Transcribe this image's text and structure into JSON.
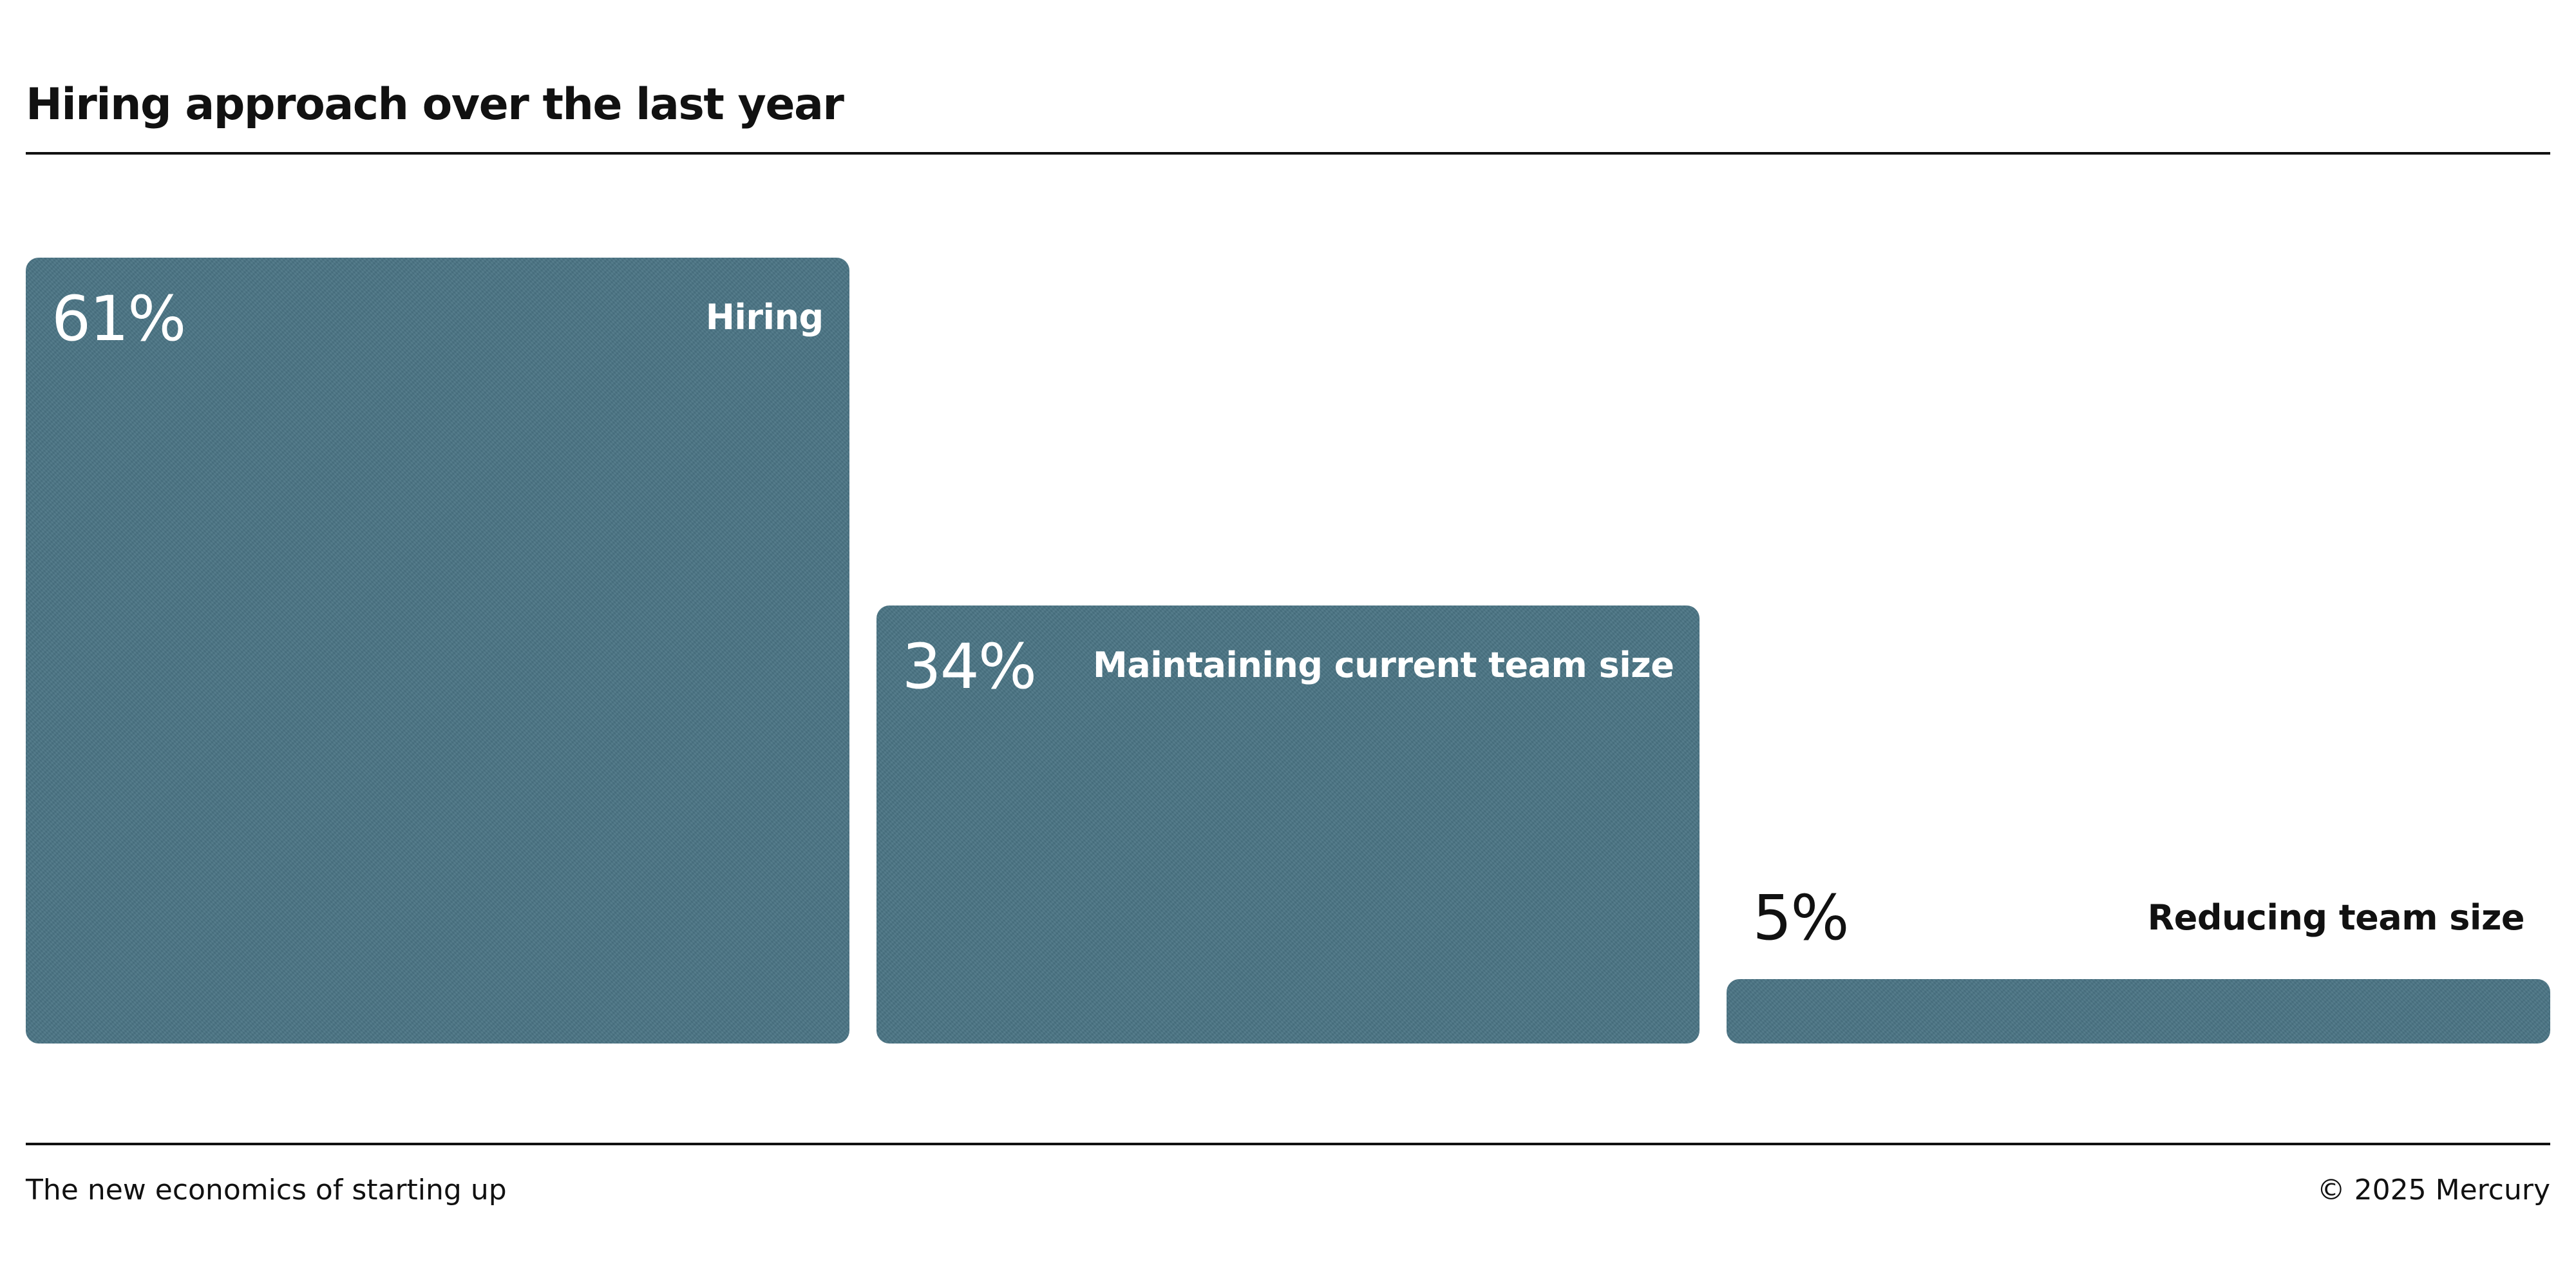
{
  "header": {
    "title": "Hiring approach over the last year"
  },
  "footer": {
    "left_text": "The new economics of starting up",
    "right_text": "© 2025 Mercury"
  },
  "colors": {
    "bar": "#4a7484",
    "text_dark": "#111111",
    "text_light": "#ffffff"
  },
  "chart_data": {
    "type": "bar",
    "title": "Hiring approach over the last year",
    "categories": [
      "Hiring",
      "Maintaining current team size",
      "Reducing team size"
    ],
    "values": [
      61,
      34,
      5
    ],
    "value_labels": [
      "61%",
      "34%",
      "5%"
    ],
    "unit": "%",
    "ylim": [
      0,
      61
    ],
    "grid": false,
    "legend": "none"
  }
}
